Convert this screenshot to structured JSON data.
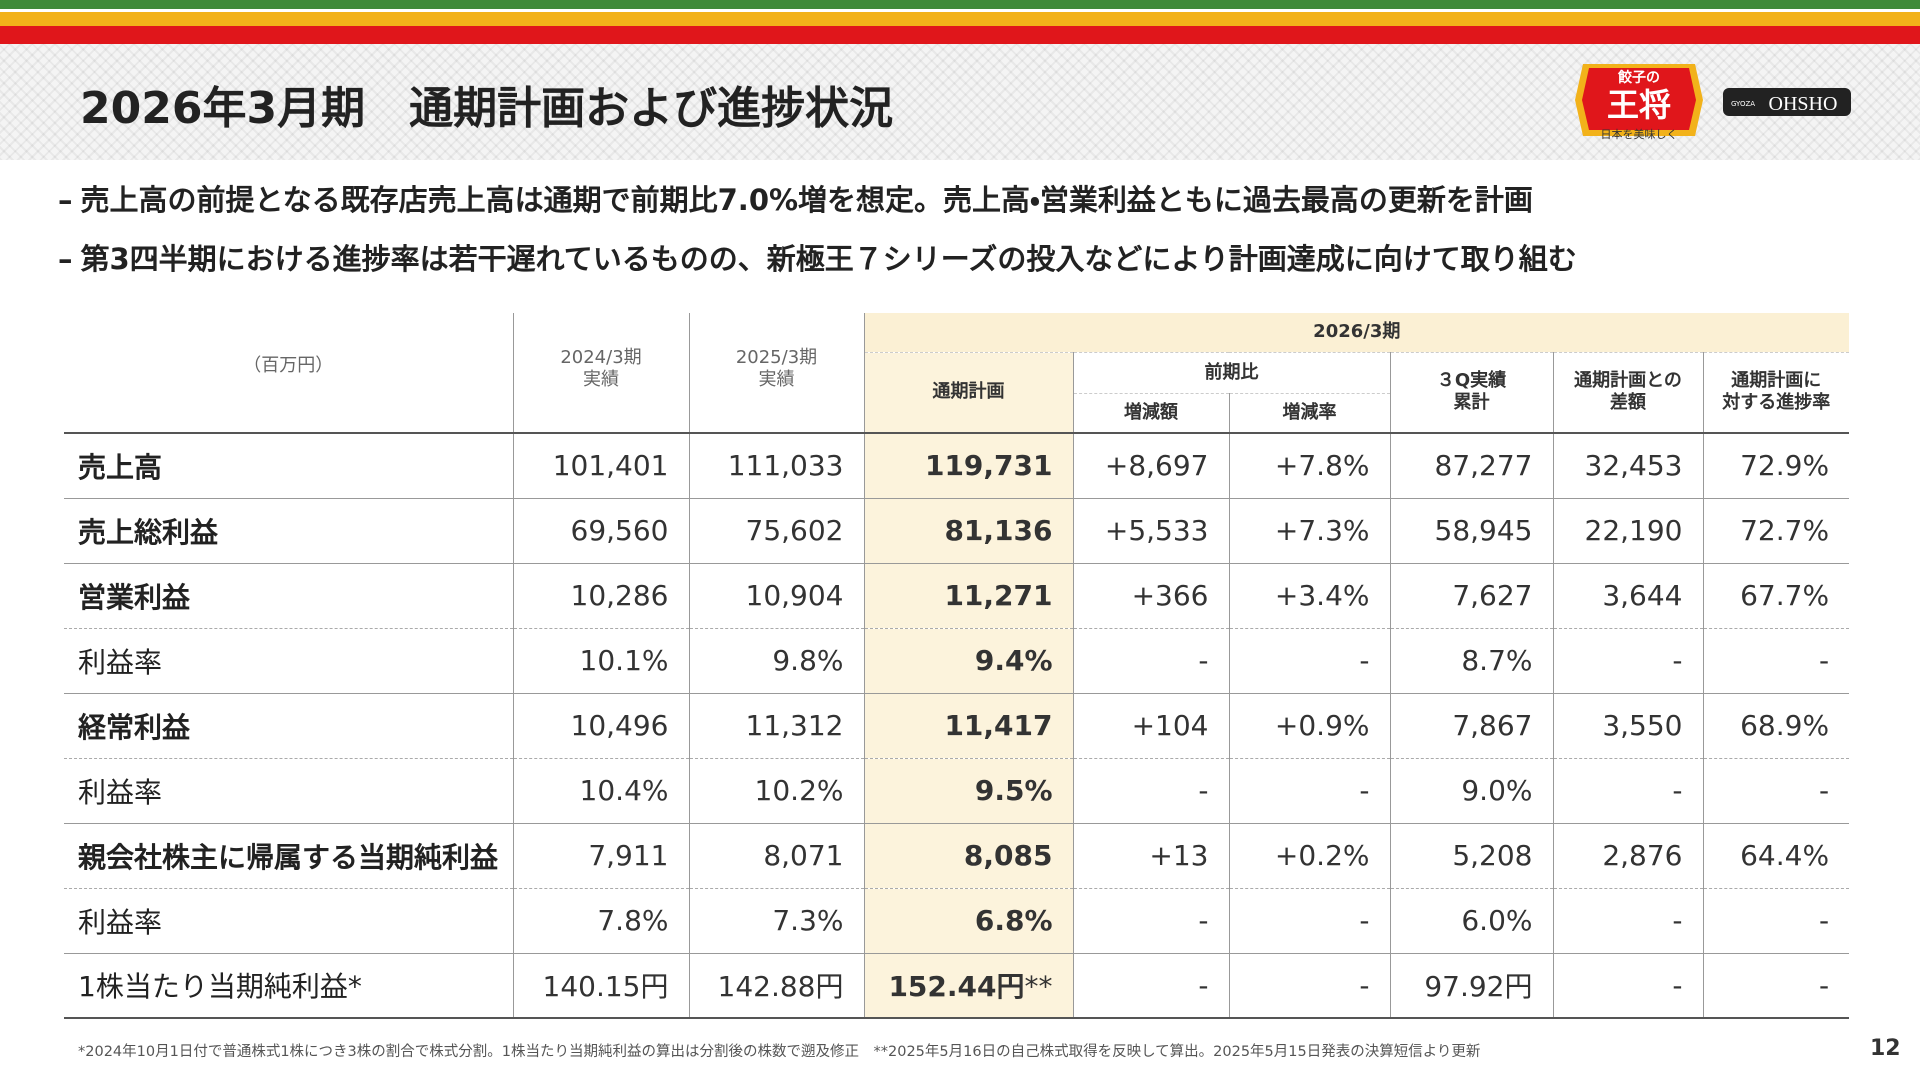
{
  "header": {
    "title": "2026年3月期　通期計画および進捗状況",
    "logo": {
      "top": "餃子の",
      "main": "王将",
      "tagline": "日本を美味しく",
      "brand_small": "GYOZA",
      "brand": "OHSHO"
    }
  },
  "bullets": [
    "売上高の前提となる既存店売上高は通期で前期比7.0%増を想定。売上高・営業利益ともに過去最高の更新を計画",
    "第3四半期における進捗率は若干遅れているものの、新極王７シリーズの投入などにより計画達成に向けて取り組む"
  ],
  "table": {
    "unit": "（百万円）",
    "fy2024": [
      "2024/3期",
      "実績"
    ],
    "fy2025": [
      "2025/3期",
      "実績"
    ],
    "group": "2026/3期",
    "plan": "通期計画",
    "yoy": "前期比",
    "yoy_amount": "増減額",
    "yoy_rate": "増減率",
    "q3": [
      "３Q実績",
      "累計"
    ],
    "diff": [
      "通期計画との",
      "差額"
    ],
    "progress": [
      "通期計画に",
      "対する進捗率"
    ],
    "rows": [
      [
        "売上高",
        "101,401",
        "111,033",
        "119,731",
        "+8,697",
        "+7.8%",
        "87,277",
        "32,453",
        "72.9%"
      ],
      [
        "売上総利益",
        "69,560",
        "75,602",
        "81,136",
        "+5,533",
        "+7.3%",
        "58,945",
        "22,190",
        "72.7%"
      ],
      [
        "営業利益",
        "10,286",
        "10,904",
        "11,271",
        "+366",
        "+3.4%",
        "7,627",
        "3,644",
        "67.7%"
      ],
      [
        "利益率",
        "10.1%",
        "9.8%",
        "9.4%",
        "-",
        "-",
        "8.7%",
        "-",
        "-"
      ],
      [
        "経常利益",
        "10,496",
        "11,312",
        "11,417",
        "+104",
        "+0.9%",
        "7,867",
        "3,550",
        "68.9%"
      ],
      [
        "利益率",
        "10.4%",
        "10.2%",
        "9.5%",
        "-",
        "-",
        "9.0%",
        "-",
        "-"
      ],
      [
        "親会社株主に帰属する当期純利益",
        "7,911",
        "8,071",
        "8,085",
        "+13",
        "+0.2%",
        "5,208",
        "2,876",
        "64.4%"
      ],
      [
        "利益率",
        "7.8%",
        "7.3%",
        "6.8%",
        "-",
        "-",
        "6.0%",
        "-",
        "-"
      ],
      [
        "1株当たり当期純利益*",
        "140.15円",
        "142.88円",
        "152.44円",
        "-",
        "-",
        "97.92円",
        "-",
        "-"
      ]
    ],
    "plan_note_mark": "**"
  },
  "footnote": "*2024年10月1日付で普通株式1株につき3株の割合で株式分割。1株当たり当期純利益の算出は分割後の株数で遡及修正　**2025年5月16日の自己株式取得を反映して算出。2025年5月15日発表の決算短信より更新",
  "page_number": "12"
}
